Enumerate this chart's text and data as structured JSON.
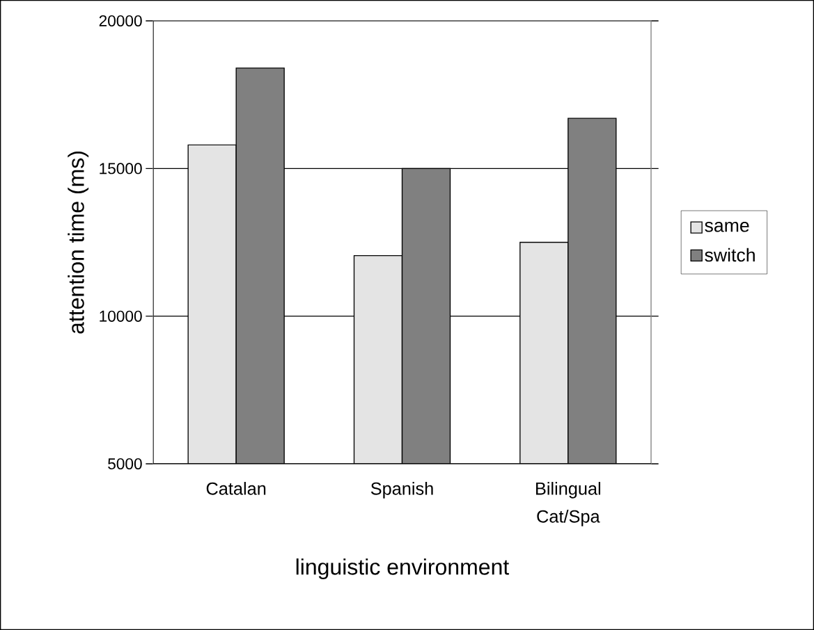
{
  "chart_data": {
    "type": "bar",
    "xlabel": "linguistic environment",
    "ylabel": "attention time (ms)",
    "categories": [
      "Catalan",
      "Spanish",
      "Bilingual Cat/Spa"
    ],
    "series": [
      {
        "name": "same",
        "color": "#e4e4e4",
        "values": [
          15800,
          12050,
          12500
        ]
      },
      {
        "name": "switch",
        "color": "#808080",
        "values": [
          18400,
          15000,
          16700
        ]
      }
    ],
    "ylim": [
      5000,
      20000
    ],
    "yticks": [
      5000,
      10000,
      15000,
      20000
    ],
    "grid": "y",
    "legend": "right"
  }
}
